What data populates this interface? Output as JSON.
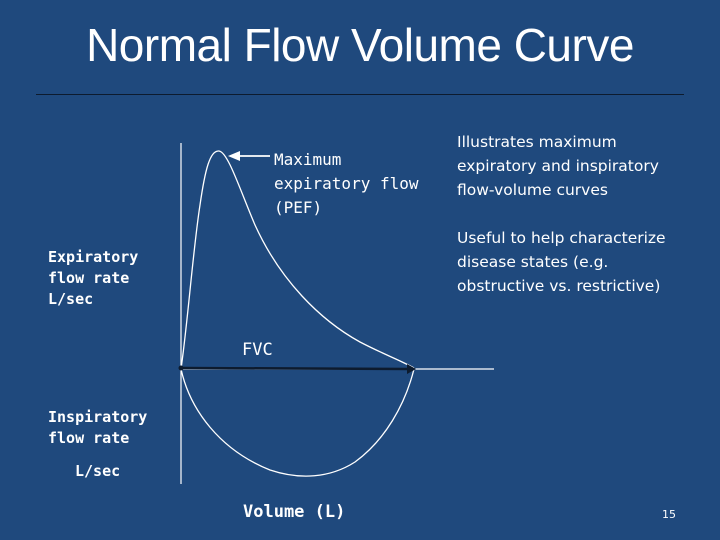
{
  "slide": {
    "title": "Normal Flow Volume Curve",
    "page_number": "15",
    "background_color": "#1F497D"
  },
  "diagram": {
    "expiratory_label": "Expiratory flow rate L/sec",
    "inspiratory_label": "Inspiratory flow rate",
    "inspiratory_unit": "L/sec",
    "pef_label": "Maximum expiratory flow (PEF)",
    "fvc_label": "FVC",
    "volume_label": "Volume (L)"
  },
  "bullets": [
    "Illustrates maximum expiratory and inspiratory flow-volume curves",
    "Useful to help characterize disease states (e.g. obstructive vs. restrictive)"
  ]
}
